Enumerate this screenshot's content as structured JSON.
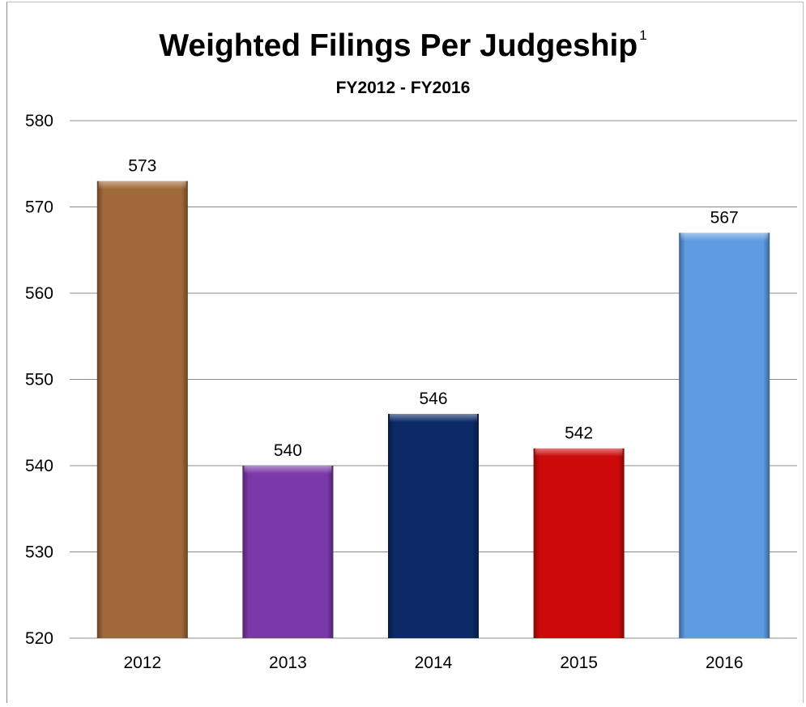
{
  "chart_data": {
    "type": "bar",
    "title": "Weighted Filings Per Judgeship",
    "title_footnote": "1",
    "subtitle": "FY2012 - FY2016",
    "categories": [
      "2012",
      "2013",
      "2014",
      "2015",
      "2016"
    ],
    "values": [
      573,
      540,
      546,
      542,
      567
    ],
    "data_labels": [
      "573",
      "540",
      "546",
      "542",
      "567"
    ],
    "y_ticks": [
      "520",
      "530",
      "540",
      "550",
      "560",
      "570",
      "580"
    ],
    "ylim": [
      520,
      580
    ],
    "grid": true,
    "legend": "none",
    "colors": [
      "#a0693a",
      "#7a38a8",
      "#0b2a66",
      "#cc0a0a",
      "#5f9be0"
    ]
  }
}
